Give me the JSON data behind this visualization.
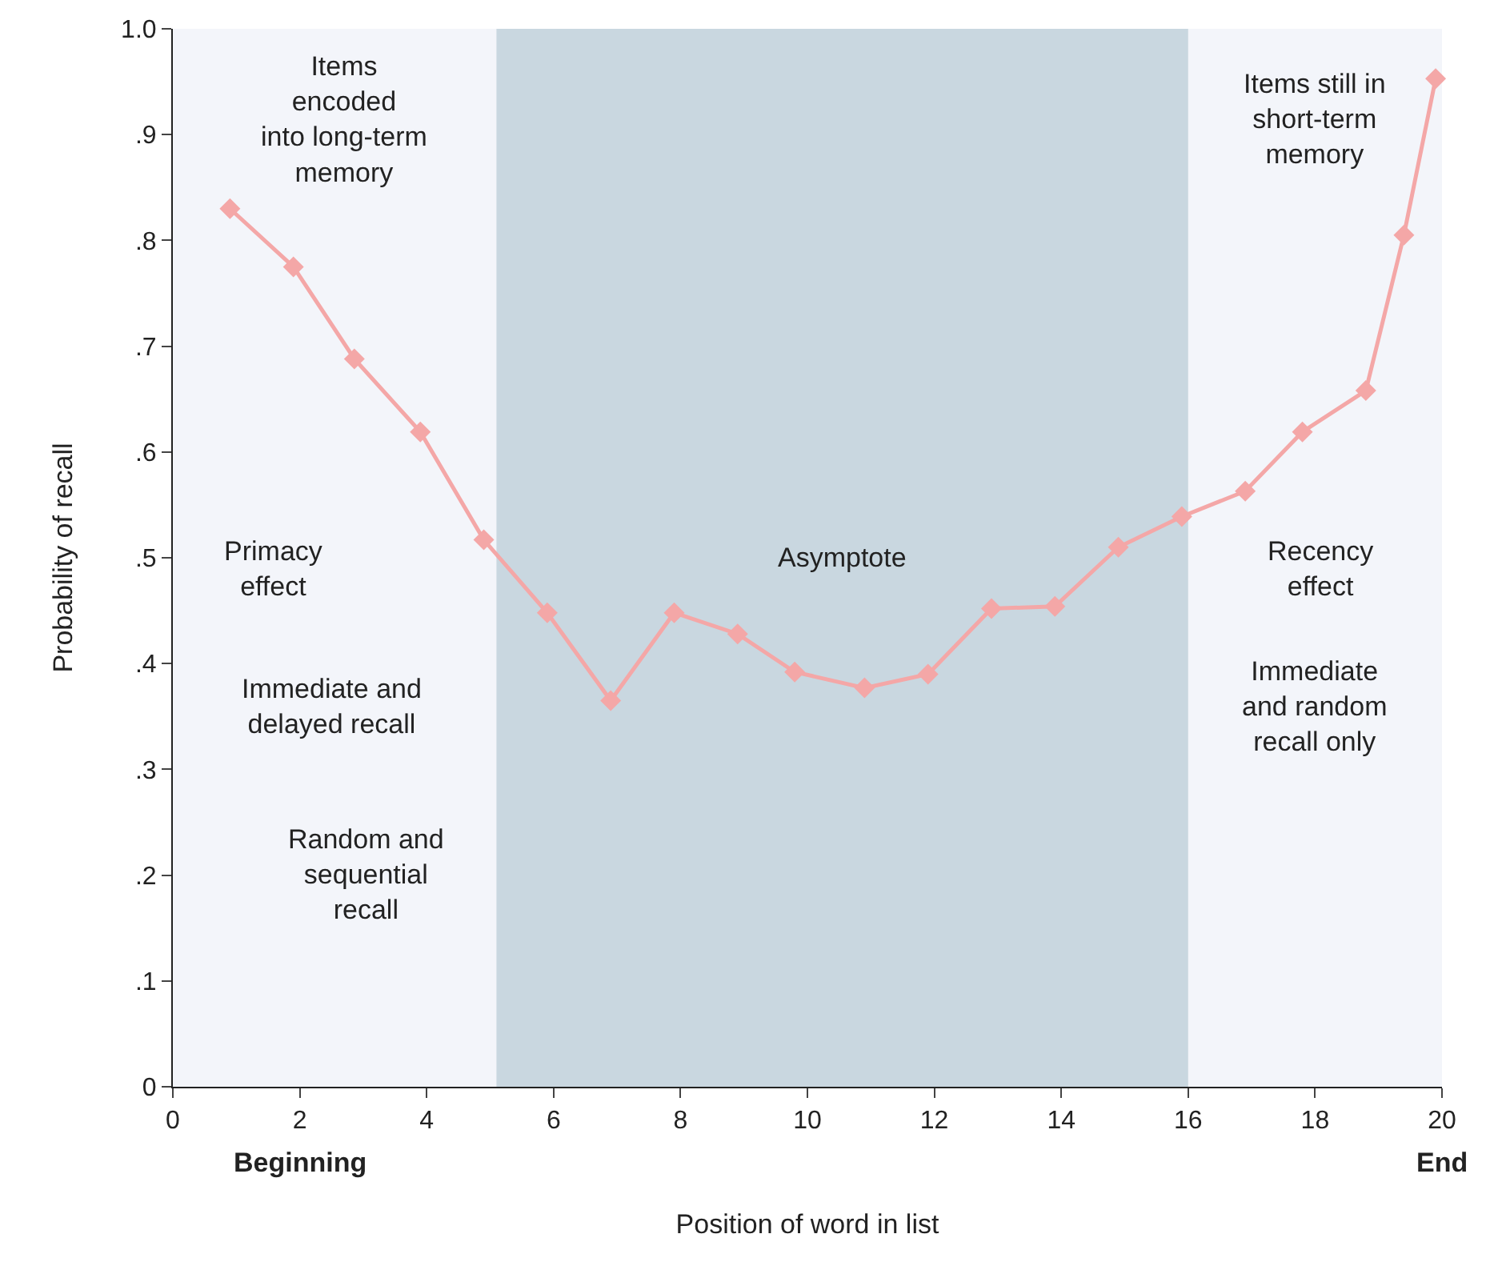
{
  "chart_data": {
    "type": "line",
    "xlabel": "Position of word in list",
    "ylabel": "Probability of recall",
    "x": [
      0.9,
      1.9,
      2.86,
      3.9,
      4.9,
      5.9,
      6.9,
      7.9,
      8.9,
      9.8,
      10.9,
      11.9,
      12.9,
      13.9,
      14.9,
      15.9,
      16.9,
      17.8,
      18.8,
      19.4,
      19.9
    ],
    "series": [
      {
        "color": "#f4a7a7",
        "values": [
          0.83,
          0.775,
          0.688,
          0.619,
          0.517,
          0.448,
          0.365,
          0.448,
          0.428,
          0.392,
          0.377,
          0.39,
          0.452,
          0.454,
          0.51,
          0.539,
          0.563,
          0.619,
          0.658,
          0.805,
          0.953
        ]
      }
    ],
    "xlim": [
      0,
      20
    ],
    "xticks": [
      0,
      2,
      4,
      6,
      8,
      10,
      12,
      14,
      16,
      18,
      20
    ],
    "ylim": [
      0,
      1.0
    ],
    "yticks": [
      0,
      {
        "value": 0.1,
        "label": ".1"
      },
      {
        "value": 0.2,
        "label": ".2"
      },
      {
        "value": 0.3,
        "label": ".3"
      },
      {
        "value": 0.4,
        "label": ".4"
      },
      {
        "value": 0.5,
        "label": ".5"
      },
      {
        "value": 0.6,
        "label": ".6"
      },
      {
        "value": 0.7,
        "label": ".7"
      },
      {
        "value": 0.8,
        "label": ".8"
      },
      {
        "value": 0.9,
        "label": ".9"
      },
      {
        "value": 1.0,
        "label": "1.0"
      }
    ],
    "bands": [
      {
        "axis": "x",
        "from": 0,
        "to": 20,
        "color": "#f3f5fa"
      },
      {
        "axis": "x",
        "from": 5.1,
        "to": 16,
        "color": "#c9d7e0",
        "label": "Asymptote"
      }
    ],
    "annotations": [
      "Items\nencoded\ninto long-term\nmemory",
      "Primacy\neffect",
      "Immediate and\ndelayed recall",
      "Random and\nsequential\nrecall",
      "Items still in\nshort-term\nmemory",
      "Recency\neffect",
      "Immediate\nand random\nrecall only",
      "Beginning",
      "End"
    ],
    "grid": false,
    "legend": false,
    "marker": "diamond",
    "line_style": "solid"
  }
}
